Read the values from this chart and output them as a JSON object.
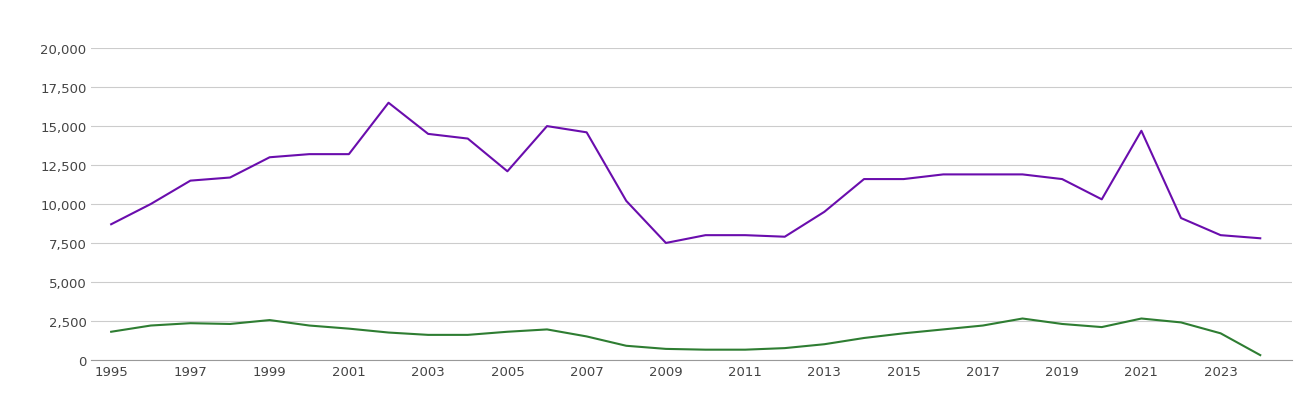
{
  "years": [
    1995,
    1996,
    1997,
    1998,
    1999,
    2000,
    2001,
    2002,
    2003,
    2004,
    2005,
    2006,
    2007,
    2008,
    2009,
    2010,
    2011,
    2012,
    2013,
    2014,
    2015,
    2016,
    2017,
    2018,
    2019,
    2020,
    2021,
    2022,
    2023,
    2024
  ],
  "new_homes": [
    1800,
    2200,
    2350,
    2300,
    2550,
    2200,
    2000,
    1750,
    1600,
    1600,
    1800,
    1950,
    1500,
    900,
    700,
    650,
    650,
    750,
    1000,
    1400,
    1700,
    1950,
    2200,
    2650,
    2300,
    2100,
    2650,
    2400,
    1700,
    300
  ],
  "established_homes": [
    8700,
    10000,
    11500,
    11700,
    13000,
    13200,
    13200,
    16500,
    14500,
    14200,
    12100,
    15000,
    14600,
    10200,
    7500,
    8000,
    8000,
    7900,
    9500,
    11600,
    11600,
    11900,
    11900,
    11900,
    11600,
    10300,
    14700,
    9100,
    8000,
    7800
  ],
  "new_color": "#2e7d32",
  "established_color": "#6a0dad",
  "background_color": "#ffffff",
  "grid_color": "#cccccc",
  "ylim": [
    0,
    20000
  ],
  "yticks": [
    0,
    2500,
    5000,
    7500,
    10000,
    12500,
    15000,
    17500,
    20000
  ],
  "xticks": [
    1995,
    1997,
    1999,
    2001,
    2003,
    2005,
    2007,
    2009,
    2011,
    2013,
    2015,
    2017,
    2019,
    2021,
    2023
  ],
  "xlim_left": 1994.5,
  "xlim_right": 2024.8
}
